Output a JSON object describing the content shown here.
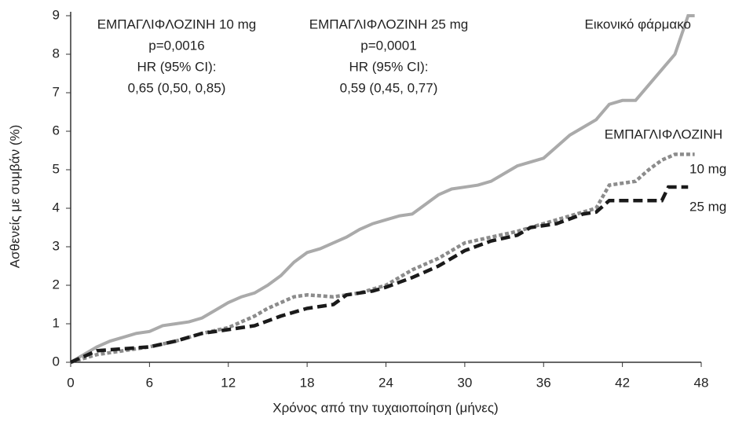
{
  "chart_data": {
    "type": "line",
    "x_label": "Χρόνος από την τυχαιοποίηση (μήνες)",
    "y_label": "Ασθενείς με συμβάν (%)",
    "xlim": [
      0,
      48
    ],
    "xticks": [
      0,
      6,
      12,
      18,
      24,
      30,
      36,
      42,
      48
    ],
    "ylim": [
      0,
      9
    ],
    "yticks": [
      0,
      1,
      2,
      3,
      4,
      5,
      6,
      7,
      8,
      9
    ],
    "grid": false,
    "annotations": [
      {
        "lines": [
          "ΕΜΠΑΓΛΙΦΛΟΖΙΝΗ 10 mg",
          "p=0,0016",
          "HR (95% CI):",
          "0,65 (0,50, 0,85)"
        ]
      },
      {
        "lines": [
          "ΕΜΠΑΓΛΙΦΛΟΖΙΝΗ 25 mg",
          "p=0,0001",
          "HR (95% CI):",
          "0,59 (0,45, 0,77)"
        ]
      }
    ],
    "group_label": "ΕΜΠΑΓΛΙΦΛΟΖΙΝΗ",
    "series": [
      {
        "name": "Εικονικό φάρμακο",
        "color": "#aaaaaa",
        "dash": "solid",
        "x": [
          0,
          1,
          2,
          3,
          4,
          5,
          6,
          7,
          8,
          9,
          10,
          11,
          12,
          13,
          14,
          15,
          16,
          17,
          18,
          19,
          20,
          21,
          22,
          23,
          24,
          25,
          26,
          27,
          28,
          29,
          30,
          31,
          32,
          33,
          34,
          35,
          36,
          37,
          38,
          39,
          40,
          41,
          42,
          43,
          44,
          45,
          46,
          47,
          47.5
        ],
        "values": [
          0,
          0.2,
          0.4,
          0.55,
          0.65,
          0.75,
          0.8,
          0.95,
          1.0,
          1.05,
          1.15,
          1.35,
          1.55,
          1.7,
          1.8,
          2.0,
          2.25,
          2.6,
          2.85,
          2.95,
          3.1,
          3.25,
          3.45,
          3.6,
          3.7,
          3.8,
          3.85,
          4.1,
          4.35,
          4.5,
          4.55,
          4.6,
          4.7,
          4.9,
          5.1,
          5.2,
          5.3,
          5.6,
          5.9,
          6.1,
          6.3,
          6.7,
          6.8,
          6.8,
          7.2,
          7.6,
          8.0,
          9.0,
          9.0
        ]
      },
      {
        "name": "10 mg",
        "color": "#8c8c8c",
        "dash": "dotted",
        "x": [
          0,
          2,
          4,
          6,
          8,
          10,
          12,
          14,
          15,
          16,
          17,
          18,
          20,
          21,
          22,
          24,
          26,
          28,
          30,
          32,
          34,
          36,
          38,
          40,
          41,
          43,
          44,
          45,
          46,
          47.5
        ],
        "values": [
          0,
          0.2,
          0.3,
          0.4,
          0.55,
          0.75,
          0.9,
          1.2,
          1.4,
          1.55,
          1.7,
          1.75,
          1.7,
          1.75,
          1.8,
          2.0,
          2.4,
          2.7,
          3.1,
          3.25,
          3.4,
          3.6,
          3.8,
          4.0,
          4.6,
          4.7,
          5.0,
          5.25,
          5.4,
          5.4
        ]
      },
      {
        "name": "25 mg",
        "color": "#1a1a1a",
        "dash": "dashed",
        "x": [
          0,
          2,
          4,
          6,
          8,
          10,
          12,
          14,
          16,
          18,
          20,
          21,
          23,
          24,
          26,
          28,
          30,
          32,
          34,
          35,
          37,
          39,
          40,
          41,
          45,
          45.5,
          47
        ],
        "values": [
          0,
          0.3,
          0.35,
          0.4,
          0.55,
          0.75,
          0.85,
          0.95,
          1.2,
          1.4,
          1.5,
          1.75,
          1.85,
          1.95,
          2.2,
          2.5,
          2.9,
          3.15,
          3.3,
          3.5,
          3.6,
          3.85,
          3.9,
          4.2,
          4.2,
          4.55,
          4.55
        ]
      }
    ]
  }
}
